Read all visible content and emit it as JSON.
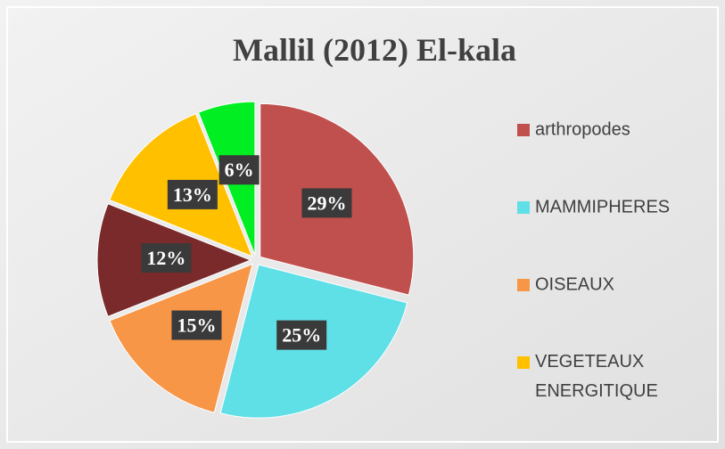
{
  "chart_data": {
    "type": "pie",
    "title": "Mallil (2012) El-kala",
    "categories": [
      "arthropodes",
      "MAMMIPHERES",
      "OISEAUX",
      null,
      "VEGETEAUX ENERGITIQUE",
      null
    ],
    "values": [
      29,
      25,
      15,
      12,
      13,
      6
    ],
    "value_labels": [
      "29%",
      "25%",
      "15%",
      "12%",
      "13%",
      "6%"
    ],
    "colors": [
      "#c0504d",
      "#5fdfe6",
      "#f79646",
      "#7a2a2a",
      "#ffc000",
      "#00ee22"
    ],
    "legend": "right"
  }
}
